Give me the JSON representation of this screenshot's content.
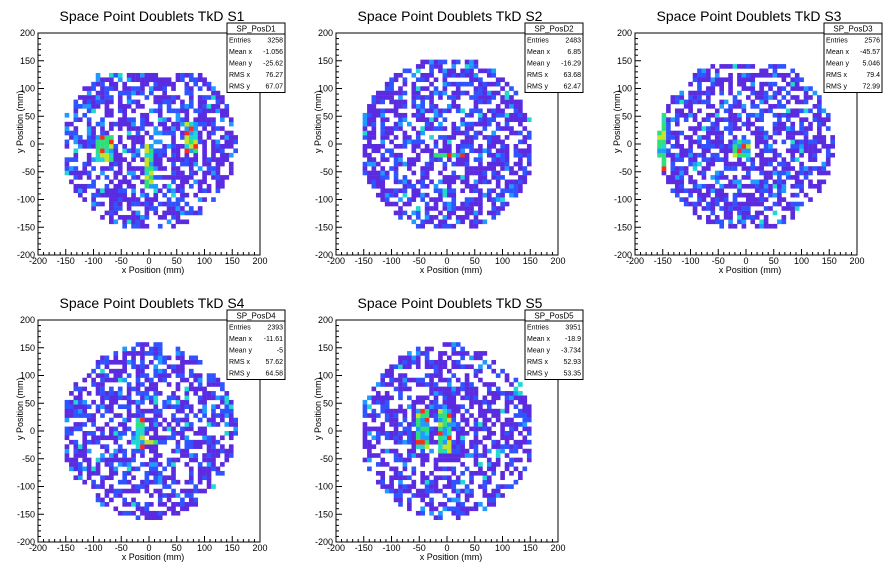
{
  "chart_data": [
    {
      "type": "heatmap",
      "title": "Space Point Doublets TkD S1",
      "xlabel": "x Position (mm)",
      "ylabel": "y Position (mm)",
      "xlim": [
        -200,
        200
      ],
      "ylim": [
        -200,
        200
      ],
      "xticks": [
        -200,
        -150,
        -100,
        -50,
        0,
        50,
        100,
        150,
        200
      ],
      "yticks": [
        -200,
        -150,
        -100,
        -50,
        0,
        50,
        100,
        150,
        200
      ],
      "grid": false,
      "colors": [
        "#5b2be0",
        "#2f54ff",
        "#1f9aff",
        "#21d8d0",
        "#2fe07a",
        "#c6e22a",
        "#ff2a1a"
      ],
      "stats": {
        "name": "SP_PosD1",
        "rows": [
          {
            "label": "Entries",
            "value": "3258"
          },
          {
            "label": "Mean x",
            "value": "-1.056"
          },
          {
            "label": "Mean y",
            "value": "-25.62"
          },
          {
            "label": "RMS x",
            "value": "76.27"
          },
          {
            "label": "RMS y",
            "value": "67.07"
          }
        ]
      },
      "distribution": {
        "x_range": [
          -155,
          160
        ],
        "y_range": [
          -155,
          125
        ],
        "hot": [
          {
            "x": 0,
            "y": -40,
            "w": 12,
            "h": 80
          },
          {
            "x": 75,
            "y": 10,
            "w": 20,
            "h": 60
          },
          {
            "x": -80,
            "y": -10,
            "w": 25,
            "h": 50
          }
        ]
      }
    },
    {
      "type": "heatmap",
      "title": "Space Point Doublets TkD S2",
      "xlabel": "x Position (mm)",
      "ylabel": "y Position (mm)",
      "xlim": [
        -200,
        200
      ],
      "ylim": [
        -200,
        200
      ],
      "xticks": [
        -200,
        -150,
        -100,
        -50,
        0,
        50,
        100,
        150,
        200
      ],
      "yticks": [
        -200,
        -150,
        -100,
        -50,
        0,
        50,
        100,
        150,
        200
      ],
      "grid": false,
      "colors": [
        "#5b2be0",
        "#2f54ff",
        "#1f9aff",
        "#21d8d0",
        "#2fe07a",
        "#c6e22a",
        "#ff2a1a"
      ],
      "stats": {
        "name": "SP_PosD2",
        "rows": [
          {
            "label": "Entries",
            "value": "2483"
          },
          {
            "label": "Mean x",
            "value": "6.85"
          },
          {
            "label": "Mean y",
            "value": "-16.29"
          },
          {
            "label": "RMS x",
            "value": "63.68"
          },
          {
            "label": "RMS y",
            "value": "62.47"
          }
        ]
      },
      "distribution": {
        "x_range": [
          -150,
          150
        ],
        "y_range": [
          -155,
          155
        ],
        "hot": [
          {
            "x": 5,
            "y": -18,
            "w": 60,
            "h": 12
          }
        ]
      }
    },
    {
      "type": "heatmap",
      "title": "Space Point Doublets TkD S3",
      "xlabel": "x Position (mm)",
      "ylabel": "y Position (mm)",
      "xlim": [
        -200,
        200
      ],
      "ylim": [
        -200,
        200
      ],
      "xticks": [
        -200,
        -150,
        -100,
        -50,
        0,
        50,
        100,
        150,
        200
      ],
      "yticks": [
        -200,
        -150,
        -100,
        -50,
        0,
        50,
        100,
        150,
        200
      ],
      "grid": false,
      "colors": [
        "#5b2be0",
        "#2f54ff",
        "#1f9aff",
        "#21d8d0",
        "#2fe07a",
        "#c6e22a",
        "#ff2a1a"
      ],
      "stats": {
        "name": "SP_PosD3",
        "rows": [
          {
            "label": "Entries",
            "value": "2576"
          },
          {
            "label": "Mean x",
            "value": "-45.57"
          },
          {
            "label": "Mean y",
            "value": "5.046"
          },
          {
            "label": "RMS x",
            "value": "79.4"
          },
          {
            "label": "RMS y",
            "value": "72.99"
          }
        ]
      },
      "distribution": {
        "x_range": [
          -165,
          160
        ],
        "y_range": [
          -155,
          140
        ],
        "hot": [
          {
            "x": -150,
            "y": 5,
            "w": 20,
            "h": 100
          },
          {
            "x": -10,
            "y": -10,
            "w": 30,
            "h": 30
          }
        ]
      }
    },
    {
      "type": "heatmap",
      "title": "Space Point Doublets TkD S4",
      "xlabel": "x Position (mm)",
      "ylabel": "y Position (mm)",
      "xlim": [
        -200,
        200
      ],
      "ylim": [
        -200,
        200
      ],
      "xticks": [
        -200,
        -150,
        -100,
        -50,
        0,
        50,
        100,
        150,
        200
      ],
      "yticks": [
        -200,
        -150,
        -100,
        -50,
        0,
        50,
        100,
        150,
        200
      ],
      "grid": false,
      "colors": [
        "#5b2be0",
        "#2f54ff",
        "#1f9aff",
        "#21d8d0",
        "#2fe07a",
        "#c6e22a",
        "#ff2a1a"
      ],
      "stats": {
        "name": "SP_PosD4",
        "rows": [
          {
            "label": "Entries",
            "value": "2393"
          },
          {
            "label": "Mean x",
            "value": "-11.61"
          },
          {
            "label": "Mean y",
            "value": "-5"
          },
          {
            "label": "RMS x",
            "value": "57.62"
          },
          {
            "label": "RMS y",
            "value": "64.58"
          }
        ]
      },
      "distribution": {
        "x_range": [
          -150,
          160
        ],
        "y_range": [
          -160,
          160
        ],
        "hot": [
          {
            "x": -10,
            "y": -20,
            "w": 45,
            "h": 15
          },
          {
            "x": -15,
            "y": -5,
            "w": 12,
            "h": 60
          }
        ]
      }
    },
    {
      "type": "heatmap",
      "title": "Space Point Doublets TkD S5",
      "xlabel": "x Position (mm)",
      "ylabel": "y Position (mm)",
      "xlim": [
        -200,
        200
      ],
      "ylim": [
        -200,
        200
      ],
      "xticks": [
        -200,
        -150,
        -100,
        -50,
        0,
        50,
        100,
        150,
        200
      ],
      "yticks": [
        -200,
        -150,
        -100,
        -50,
        0,
        50,
        100,
        150,
        200
      ],
      "grid": false,
      "colors": [
        "#5b2be0",
        "#2f54ff",
        "#1f9aff",
        "#21d8d0",
        "#2fe07a",
        "#c6e22a",
        "#ff2a1a"
      ],
      "stats": {
        "name": "SP_PosD5",
        "rows": [
          {
            "label": "Entries",
            "value": "3951"
          },
          {
            "label": "Mean x",
            "value": "-18.9"
          },
          {
            "label": "Mean y",
            "value": "-3.734"
          },
          {
            "label": "RMS x",
            "value": "52.93"
          },
          {
            "label": "RMS y",
            "value": "53.35"
          }
        ]
      },
      "distribution": {
        "x_range": [
          -150,
          150
        ],
        "y_range": [
          -160,
          160
        ],
        "hot": [
          {
            "x": -45,
            "y": 5,
            "w": 30,
            "h": 70
          },
          {
            "x": -5,
            "y": 0,
            "w": 20,
            "h": 80
          }
        ]
      }
    }
  ]
}
